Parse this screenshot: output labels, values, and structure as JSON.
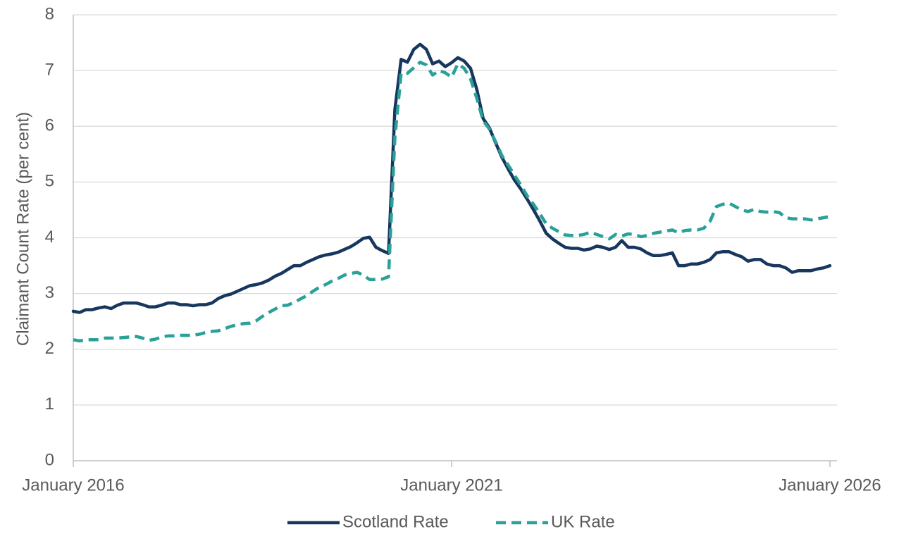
{
  "chart_data": {
    "type": "line",
    "title": "",
    "xlabel": "",
    "ylabel": "Claimant Count Rate (per cent)",
    "ylim": [
      0,
      8
    ],
    "yticks": [
      "0",
      "1",
      "2",
      "3",
      "4",
      "5",
      "6",
      "7",
      "8"
    ],
    "xlim": [
      "2016-01",
      "2026-01"
    ],
    "xticks": [
      {
        "date": "2016-01",
        "label": "January 2016"
      },
      {
        "date": "2021-01",
        "label": "January 2021"
      },
      {
        "date": "2026-01",
        "label": "January 2026"
      }
    ],
    "grid": "horizontal",
    "legend_position": "bottom",
    "series": [
      {
        "name": "Scotland Rate",
        "color": "#17375e",
        "style": "solid",
        "points": [
          [
            "2016-01",
            2.68
          ],
          [
            "2016-02",
            2.66
          ],
          [
            "2016-03",
            2.71
          ],
          [
            "2016-04",
            2.71
          ],
          [
            "2016-05",
            2.74
          ],
          [
            "2016-06",
            2.76
          ],
          [
            "2016-07",
            2.73
          ],
          [
            "2016-08",
            2.79
          ],
          [
            "2016-09",
            2.83
          ],
          [
            "2016-10",
            2.83
          ],
          [
            "2016-11",
            2.83
          ],
          [
            "2016-12",
            2.8
          ],
          [
            "2017-01",
            2.76
          ],
          [
            "2017-02",
            2.76
          ],
          [
            "2017-03",
            2.79
          ],
          [
            "2017-04",
            2.83
          ],
          [
            "2017-05",
            2.83
          ],
          [
            "2017-06",
            2.8
          ],
          [
            "2017-07",
            2.8
          ],
          [
            "2017-08",
            2.78
          ],
          [
            "2017-09",
            2.8
          ],
          [
            "2017-10",
            2.8
          ],
          [
            "2017-11",
            2.83
          ],
          [
            "2017-12",
            2.91
          ],
          [
            "2018-01",
            2.96
          ],
          [
            "2018-02",
            2.99
          ],
          [
            "2018-03",
            3.04
          ],
          [
            "2018-04",
            3.09
          ],
          [
            "2018-05",
            3.14
          ],
          [
            "2018-06",
            3.16
          ],
          [
            "2018-07",
            3.19
          ],
          [
            "2018-08",
            3.24
          ],
          [
            "2018-09",
            3.31
          ],
          [
            "2018-10",
            3.36
          ],
          [
            "2018-11",
            3.43
          ],
          [
            "2018-12",
            3.5
          ],
          [
            "2019-01",
            3.5
          ],
          [
            "2019-02",
            3.56
          ],
          [
            "2019-03",
            3.61
          ],
          [
            "2019-04",
            3.66
          ],
          [
            "2019-05",
            3.69
          ],
          [
            "2019-06",
            3.71
          ],
          [
            "2019-07",
            3.74
          ],
          [
            "2019-08",
            3.79
          ],
          [
            "2019-09",
            3.84
          ],
          [
            "2019-10",
            3.91
          ],
          [
            "2019-11",
            3.99
          ],
          [
            "2019-12",
            4.01
          ],
          [
            "2020-01",
            3.83
          ],
          [
            "2020-02",
            3.77
          ],
          [
            "2020-03",
            3.72
          ],
          [
            "2020-04",
            6.3
          ],
          [
            "2020-05",
            7.2
          ],
          [
            "2020-06",
            7.15
          ],
          [
            "2020-07",
            7.38
          ],
          [
            "2020-08",
            7.47
          ],
          [
            "2020-09",
            7.38
          ],
          [
            "2020-10",
            7.12
          ],
          [
            "2020-11",
            7.17
          ],
          [
            "2020-12",
            7.07
          ],
          [
            "2021-01",
            7.14
          ],
          [
            "2021-02",
            7.23
          ],
          [
            "2021-03",
            7.17
          ],
          [
            "2021-04",
            7.04
          ],
          [
            "2021-05",
            6.66
          ],
          [
            "2021-06",
            6.14
          ],
          [
            "2021-07",
            5.97
          ],
          [
            "2021-08",
            5.7
          ],
          [
            "2021-09",
            5.44
          ],
          [
            "2021-10",
            5.23
          ],
          [
            "2021-11",
            5.03
          ],
          [
            "2021-12",
            4.87
          ],
          [
            "2022-01",
            4.69
          ],
          [
            "2022-02",
            4.5
          ],
          [
            "2022-03",
            4.3
          ],
          [
            "2022-04",
            4.08
          ],
          [
            "2022-05",
            3.98
          ],
          [
            "2022-06",
            3.9
          ],
          [
            "2022-07",
            3.83
          ],
          [
            "2022-08",
            3.81
          ],
          [
            "2022-09",
            3.81
          ],
          [
            "2022-10",
            3.78
          ],
          [
            "2022-11",
            3.8
          ],
          [
            "2022-12",
            3.85
          ],
          [
            "2023-01",
            3.83
          ],
          [
            "2023-02",
            3.79
          ],
          [
            "2023-03",
            3.83
          ],
          [
            "2023-04",
            3.95
          ],
          [
            "2023-05",
            3.83
          ],
          [
            "2023-06",
            3.83
          ],
          [
            "2023-07",
            3.8
          ],
          [
            "2023-08",
            3.73
          ],
          [
            "2023-09",
            3.68
          ],
          [
            "2023-10",
            3.68
          ],
          [
            "2023-11",
            3.7
          ],
          [
            "2023-12",
            3.73
          ],
          [
            "2024-01",
            3.5
          ],
          [
            "2024-02",
            3.5
          ],
          [
            "2024-03",
            3.53
          ],
          [
            "2024-04",
            3.53
          ],
          [
            "2024-05",
            3.56
          ],
          [
            "2024-06",
            3.61
          ],
          [
            "2024-07",
            3.73
          ],
          [
            "2024-08",
            3.75
          ],
          [
            "2024-09",
            3.75
          ],
          [
            "2024-10",
            3.7
          ],
          [
            "2024-11",
            3.66
          ],
          [
            "2024-12",
            3.58
          ],
          [
            "2025-01",
            3.61
          ],
          [
            "2025-02",
            3.61
          ],
          [
            "2025-03",
            3.53
          ],
          [
            "2025-04",
            3.5
          ],
          [
            "2025-05",
            3.5
          ],
          [
            "2025-06",
            3.46
          ],
          [
            "2025-07",
            3.38
          ],
          [
            "2025-08",
            3.41
          ],
          [
            "2025-09",
            3.41
          ],
          [
            "2025-10",
            3.41
          ],
          [
            "2025-11",
            3.44
          ],
          [
            "2025-12",
            3.46
          ],
          [
            "2026-01",
            3.5
          ]
        ]
      },
      {
        "name": "UK Rate",
        "color": "#2aa198",
        "style": "dashed",
        "points": [
          [
            "2016-01",
            2.17
          ],
          [
            "2016-02",
            2.15
          ],
          [
            "2016-03",
            2.17
          ],
          [
            "2016-04",
            2.17
          ],
          [
            "2016-05",
            2.17
          ],
          [
            "2016-06",
            2.2
          ],
          [
            "2016-07",
            2.2
          ],
          [
            "2016-08",
            2.2
          ],
          [
            "2016-09",
            2.21
          ],
          [
            "2016-10",
            2.22
          ],
          [
            "2016-11",
            2.23
          ],
          [
            "2016-12",
            2.2
          ],
          [
            "2017-01",
            2.16
          ],
          [
            "2017-02",
            2.18
          ],
          [
            "2017-03",
            2.22
          ],
          [
            "2017-04",
            2.24
          ],
          [
            "2017-05",
            2.24
          ],
          [
            "2017-06",
            2.25
          ],
          [
            "2017-07",
            2.25
          ],
          [
            "2017-08",
            2.25
          ],
          [
            "2017-09",
            2.27
          ],
          [
            "2017-10",
            2.3
          ],
          [
            "2017-11",
            2.32
          ],
          [
            "2017-12",
            2.33
          ],
          [
            "2018-01",
            2.37
          ],
          [
            "2018-02",
            2.41
          ],
          [
            "2018-03",
            2.44
          ],
          [
            "2018-04",
            2.46
          ],
          [
            "2018-05",
            2.47
          ],
          [
            "2018-06",
            2.51
          ],
          [
            "2018-07",
            2.59
          ],
          [
            "2018-08",
            2.66
          ],
          [
            "2018-09",
            2.72
          ],
          [
            "2018-10",
            2.78
          ],
          [
            "2018-11",
            2.79
          ],
          [
            "2018-12",
            2.84
          ],
          [
            "2019-01",
            2.9
          ],
          [
            "2019-02",
            2.96
          ],
          [
            "2019-03",
            3.04
          ],
          [
            "2019-04",
            3.11
          ],
          [
            "2019-05",
            3.16
          ],
          [
            "2019-06",
            3.22
          ],
          [
            "2019-07",
            3.27
          ],
          [
            "2019-08",
            3.33
          ],
          [
            "2019-09",
            3.36
          ],
          [
            "2019-10",
            3.38
          ],
          [
            "2019-11",
            3.33
          ],
          [
            "2019-12",
            3.25
          ],
          [
            "2020-01",
            3.25
          ],
          [
            "2020-02",
            3.26
          ],
          [
            "2020-03",
            3.3
          ],
          [
            "2020-04",
            5.8
          ],
          [
            "2020-05",
            6.95
          ],
          [
            "2020-06",
            6.95
          ],
          [
            "2020-07",
            7.05
          ],
          [
            "2020-08",
            7.15
          ],
          [
            "2020-09",
            7.1
          ],
          [
            "2020-10",
            6.92
          ],
          [
            "2020-11",
            7.0
          ],
          [
            "2020-12",
            6.96
          ],
          [
            "2021-01",
            6.88
          ],
          [
            "2021-02",
            7.12
          ],
          [
            "2021-03",
            7.04
          ],
          [
            "2021-04",
            6.85
          ],
          [
            "2021-05",
            6.5
          ],
          [
            "2021-06",
            6.1
          ],
          [
            "2021-07",
            5.95
          ],
          [
            "2021-08",
            5.72
          ],
          [
            "2021-09",
            5.47
          ],
          [
            "2021-10",
            5.3
          ],
          [
            "2021-11",
            5.12
          ],
          [
            "2021-12",
            4.94
          ],
          [
            "2022-01",
            4.75
          ],
          [
            "2022-02",
            4.6
          ],
          [
            "2022-03",
            4.43
          ],
          [
            "2022-04",
            4.25
          ],
          [
            "2022-05",
            4.17
          ],
          [
            "2022-06",
            4.11
          ],
          [
            "2022-07",
            4.05
          ],
          [
            "2022-08",
            4.04
          ],
          [
            "2022-09",
            4.04
          ],
          [
            "2022-10",
            4.06
          ],
          [
            "2022-11",
            4.1
          ],
          [
            "2022-12",
            4.06
          ],
          [
            "2023-01",
            4.02
          ],
          [
            "2023-02",
            3.98
          ],
          [
            "2023-03",
            4.06
          ],
          [
            "2023-04",
            4.03
          ],
          [
            "2023-05",
            4.07
          ],
          [
            "2023-06",
            4.06
          ],
          [
            "2023-07",
            4.02
          ],
          [
            "2023-08",
            4.04
          ],
          [
            "2023-09",
            4.08
          ],
          [
            "2023-10",
            4.1
          ],
          [
            "2023-11",
            4.12
          ],
          [
            "2023-12",
            4.14
          ],
          [
            "2024-01",
            4.09
          ],
          [
            "2024-02",
            4.13
          ],
          [
            "2024-03",
            4.14
          ],
          [
            "2024-04",
            4.14
          ],
          [
            "2024-05",
            4.17
          ],
          [
            "2024-06",
            4.3
          ],
          [
            "2024-07",
            4.56
          ],
          [
            "2024-08",
            4.6
          ],
          [
            "2024-09",
            4.62
          ],
          [
            "2024-10",
            4.56
          ],
          [
            "2024-11",
            4.5
          ],
          [
            "2024-12",
            4.47
          ],
          [
            "2025-01",
            4.51
          ],
          [
            "2025-02",
            4.47
          ],
          [
            "2025-03",
            4.46
          ],
          [
            "2025-04",
            4.47
          ],
          [
            "2025-05",
            4.45
          ],
          [
            "2025-06",
            4.36
          ],
          [
            "2025-07",
            4.34
          ],
          [
            "2025-08",
            4.34
          ],
          [
            "2025-09",
            4.34
          ],
          [
            "2025-10",
            4.32
          ],
          [
            "2025-11",
            4.34
          ],
          [
            "2025-12",
            4.36
          ],
          [
            "2026-01",
            4.38
          ]
        ]
      }
    ]
  }
}
